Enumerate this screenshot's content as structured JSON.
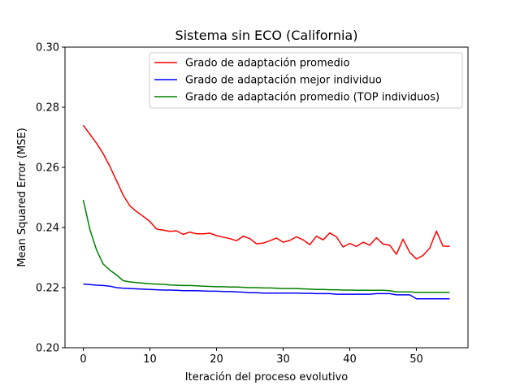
{
  "chart_data": {
    "type": "line",
    "title": "Sistema sin ECO (California)",
    "xlabel": "Iteración del proceso evolutivo",
    "ylabel": "Mean Squared Error (MSE)",
    "xlim": [
      -2.75,
      57.75
    ],
    "ylim": [
      0.2,
      0.3
    ],
    "xticks": [
      0,
      10,
      20,
      30,
      40,
      50
    ],
    "yticks": [
      0.2,
      0.22,
      0.24,
      0.26,
      0.28,
      0.3
    ],
    "ytick_labels": [
      "0.20",
      "0.22",
      "0.24",
      "0.26",
      "0.28",
      "0.30"
    ],
    "grid": false,
    "legend_position": "top-right",
    "x": [
      0,
      1,
      2,
      3,
      4,
      5,
      6,
      7,
      8,
      9,
      10,
      11,
      12,
      13,
      14,
      15,
      16,
      17,
      18,
      19,
      20,
      21,
      22,
      23,
      24,
      25,
      26,
      27,
      28,
      29,
      30,
      31,
      32,
      33,
      34,
      35,
      36,
      37,
      38,
      39,
      40,
      41,
      42,
      43,
      44,
      45,
      46,
      47,
      48,
      49,
      50,
      51,
      52,
      53,
      54,
      55
    ],
    "series": [
      {
        "name": "Grado de adaptación promedio",
        "color": "#ff0000",
        "values": [
          0.274,
          0.271,
          0.268,
          0.2645,
          0.2603,
          0.2555,
          0.2507,
          0.2472,
          0.2453,
          0.2437,
          0.242,
          0.2395,
          0.2391,
          0.2387,
          0.2389,
          0.2377,
          0.2385,
          0.2379,
          0.2379,
          0.2381,
          0.2373,
          0.2368,
          0.2363,
          0.2356,
          0.2371,
          0.2363,
          0.2346,
          0.2348,
          0.2356,
          0.2365,
          0.2351,
          0.2357,
          0.2369,
          0.2359,
          0.2343,
          0.2371,
          0.2359,
          0.2382,
          0.2369,
          0.2335,
          0.2347,
          0.2337,
          0.2351,
          0.2341,
          0.2366,
          0.2345,
          0.2341,
          0.2311,
          0.2361,
          0.2317,
          0.2295,
          0.2307,
          0.2331,
          0.2388,
          0.2338,
          0.2337
        ]
      },
      {
        "name": "Grado de adaptación mejor individuo",
        "color": "#0000ff",
        "values": [
          0.2212,
          0.221,
          0.2208,
          0.2207,
          0.2205,
          0.22,
          0.2198,
          0.2197,
          0.2196,
          0.2195,
          0.2194,
          0.2193,
          0.2192,
          0.2192,
          0.2191,
          0.219,
          0.219,
          0.219,
          0.2189,
          0.2188,
          0.2188,
          0.2187,
          0.2187,
          0.2186,
          0.2185,
          0.2183,
          0.2183,
          0.2182,
          0.2182,
          0.2182,
          0.2182,
          0.2182,
          0.2182,
          0.2181,
          0.2181,
          0.218,
          0.218,
          0.218,
          0.2178,
          0.2178,
          0.2178,
          0.2178,
          0.2178,
          0.2178,
          0.218,
          0.218,
          0.218,
          0.2176,
          0.2176,
          0.2176,
          0.2163,
          0.2163,
          0.2163,
          0.2163,
          0.2163,
          0.2163
        ]
      },
      {
        "name": "Grado de adaptación promedio (TOP individuos)",
        "color": "#008000",
        "values": [
          0.2492,
          0.2393,
          0.2325,
          0.2278,
          0.2258,
          0.2242,
          0.2223,
          0.2219,
          0.2217,
          0.2215,
          0.2213,
          0.2212,
          0.2211,
          0.2209,
          0.2208,
          0.2207,
          0.2207,
          0.2206,
          0.2205,
          0.2204,
          0.2203,
          0.2203,
          0.2202,
          0.2202,
          0.2201,
          0.22,
          0.22,
          0.2199,
          0.2199,
          0.2198,
          0.2197,
          0.2197,
          0.2197,
          0.2196,
          0.2195,
          0.2194,
          0.2194,
          0.2193,
          0.2193,
          0.2192,
          0.2192,
          0.2191,
          0.2191,
          0.2191,
          0.2191,
          0.2191,
          0.219,
          0.2186,
          0.2186,
          0.2186,
          0.2184,
          0.2184,
          0.2184,
          0.2184,
          0.2184,
          0.2184
        ]
      }
    ]
  }
}
